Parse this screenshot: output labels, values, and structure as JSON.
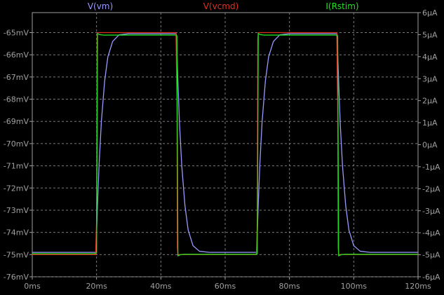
{
  "chart_data": {
    "type": "line",
    "grid": true,
    "x_ticks": [
      "0ms",
      "20ms",
      "40ms",
      "60ms",
      "80ms",
      "100ms",
      "120ms"
    ],
    "x_range": [
      0,
      120
    ],
    "y_left_ticks": [
      "-65mV",
      "-66mV",
      "-67mV",
      "-68mV",
      "-69mV",
      "-70mV",
      "-71mV",
      "-72mV",
      "-73mV",
      "-74mV",
      "-75mV",
      "-76mV"
    ],
    "y_left_range": [
      -76,
      -64.1
    ],
    "y_right_ticks": [
      "6µA",
      "5µA",
      "4µA",
      "3µA",
      "2µA",
      "1µA",
      "0µA",
      "-1µA",
      "-2µA",
      "-3µA",
      "-4µA",
      "-5µA",
      "-6µA"
    ],
    "y_right_range": [
      -6,
      6
    ],
    "series": [
      {
        "name": "V(vm)",
        "color": "#9a9aff",
        "axis": "left",
        "x": [
          0,
          19.8,
          20.3,
          20.8,
          21.5,
          22.5,
          23.5,
          25,
          27,
          30,
          44.8,
          45.3,
          45.8,
          46.5,
          47.5,
          48.5,
          50,
          52,
          55,
          69.8,
          70.3,
          70.8,
          71.5,
          72.5,
          73.5,
          75,
          77,
          80,
          94.8,
          95.3,
          95.8,
          96.5,
          97.5,
          98.5,
          100,
          102,
          105,
          120
        ],
        "y": [
          -74.9,
          -74.9,
          -72.7,
          -70.9,
          -69,
          -67.2,
          -66.1,
          -65.4,
          -65.1,
          -65.05,
          -65.05,
          -67.2,
          -69.1,
          -71,
          -72.8,
          -73.9,
          -74.6,
          -74.85,
          -74.9,
          -74.9,
          -72.7,
          -70.9,
          -69,
          -67.2,
          -66.1,
          -65.4,
          -65.1,
          -65.05,
          -65.05,
          -67.2,
          -69.1,
          -71,
          -72.8,
          -73.9,
          -74.6,
          -74.85,
          -74.9,
          -74.9
        ]
      },
      {
        "name": "V(vcmd)",
        "color": "#e03020",
        "axis": "left",
        "x": [
          0,
          19.7,
          20,
          20.15,
          20.3,
          44.7,
          45,
          45.15,
          45.3,
          69.7,
          70,
          70.15,
          70.3,
          94.7,
          95,
          95.15,
          95.3,
          120
        ],
        "y": [
          -75,
          -75,
          -73.5,
          -65.3,
          -65,
          -65,
          -68.1,
          -74.7,
          -75,
          -75,
          -73.5,
          -65.3,
          -65,
          -65,
          -68.1,
          -74.7,
          -75,
          -75
        ]
      },
      {
        "name": "I(Rstim)",
        "color": "#20e020",
        "axis": "right",
        "x": [
          0,
          19.5,
          20,
          20.3,
          21,
          22,
          23,
          44.5,
          45,
          45.3,
          46,
          47,
          48,
          69.5,
          70,
          70.3,
          71,
          72,
          73,
          94.5,
          95,
          95.3,
          96,
          97,
          98,
          120
        ],
        "y": [
          -4.95,
          -4.95,
          -4.9,
          5.05,
          5.0,
          4.98,
          4.98,
          4.98,
          4.95,
          -5.05,
          -5.0,
          -4.98,
          -4.98,
          -4.98,
          -4.95,
          5.05,
          5.0,
          4.98,
          4.98,
          4.98,
          4.95,
          -5.05,
          -5.0,
          -4.98,
          -4.98,
          -4.98
        ]
      }
    ]
  }
}
